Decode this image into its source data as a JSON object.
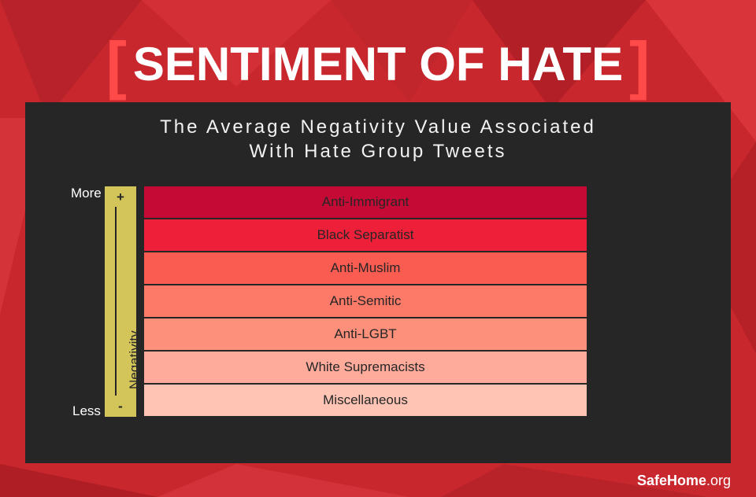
{
  "header": {
    "title": "SENTIMENT OF HATE",
    "bracket_open": "[",
    "bracket_close": "]"
  },
  "colors": {
    "background": "#c8272d",
    "accent": "#ff4a4a",
    "panel": "#262626",
    "scale": "#d4c55a"
  },
  "chart_data": {
    "type": "bar",
    "subtitle_line1": "The Average Negativity Value Associated",
    "subtitle_line2": "With Hate Group Tweets",
    "ylabel": "Negativity",
    "scale_top_label": "More",
    "scale_bottom_label": "Less",
    "scale_top_sign": "+",
    "scale_bottom_sign": "-",
    "categories": [
      "Anti-Immigrant",
      "Black Separatist",
      "Anti-Muslim",
      "Anti-Semitic",
      "Anti-LGBT",
      "White Supremacists",
      "Miscellaneous"
    ],
    "rank": [
      1,
      2,
      3,
      4,
      5,
      6,
      7
    ],
    "colors": [
      "#c50a35",
      "#ee2039",
      "#fb5c52",
      "#fc7a67",
      "#fd907b",
      "#feab9c",
      "#ffc4b4"
    ]
  },
  "footer": {
    "brand_bold": "SafeHome",
    "brand_suffix": ".org"
  }
}
